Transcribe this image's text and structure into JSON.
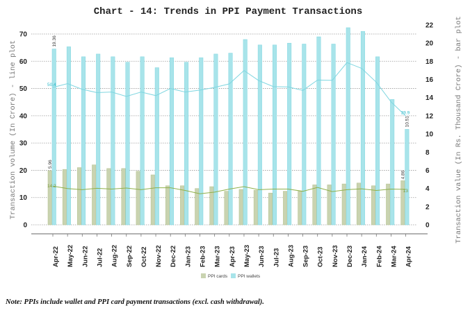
{
  "chart_data": {
    "type": "bar+line",
    "title": "Chart - 14: Trends in PPI Payment Transactions",
    "ylabel_left": "Transaction volume (In Crore) - line plot",
    "ylabel_right": "Transaction value (In Rs. Thousand Crore) - bar plot",
    "ylim_left": [
      0,
      70
    ],
    "yticks_left": [
      0,
      10,
      20,
      30,
      40,
      50,
      60,
      70
    ],
    "ylim_right": [
      0,
      22
    ],
    "yticks_right": [
      0,
      2,
      4,
      6,
      8,
      10,
      12,
      14,
      16,
      18,
      20,
      22
    ],
    "grid": true,
    "legend_position": "bottom",
    "categories": [
      "Apr-22",
      "May-22",
      "Jun-22",
      "Jul-22",
      "Aug-22",
      "Sep-22",
      "Oct-22",
      "Nov-22",
      "Dec-22",
      "Jan-23",
      "Feb-23",
      "Mar-23",
      "Apr-23",
      "May-23",
      "Jun-23",
      "Jul-23",
      "Aug-23",
      "Sep-23",
      "Oct-23",
      "Nov-23",
      "Dec-23",
      "Jan-24",
      "Feb-24",
      "Mar-24",
      "Apr-24"
    ],
    "bar_series": [
      {
        "name": "PPI cards",
        "color": "#c9d3b0",
        "axis": "right",
        "values": [
          5.96,
          6.1,
          6.3,
          6.6,
          6.2,
          6.2,
          5.9,
          5.5,
          4.3,
          4.3,
          4.0,
          4.2,
          3.7,
          3.9,
          3.8,
          3.5,
          3.7,
          3.7,
          4.4,
          4.4,
          4.5,
          4.6,
          4.3,
          4.5,
          4.86
        ]
      },
      {
        "name": "PPI wallets",
        "color": "#a8e4ea",
        "axis": "right",
        "values": [
          19.36,
          19.6,
          18.5,
          18.8,
          18.5,
          17.9,
          18.5,
          17.3,
          18.4,
          17.9,
          18.4,
          18.8,
          18.9,
          20.4,
          19.8,
          19.8,
          20.0,
          19.9,
          20.7,
          19.9,
          21.7,
          21.3,
          18.5,
          13.8,
          10.51
        ]
      }
    ],
    "line_series": [
      {
        "color": "#8fb04a",
        "axis": "left",
        "values": [
          14.2,
          13.3,
          12.9,
          13.4,
          13.1,
          13.5,
          12.9,
          13.6,
          13.6,
          12.6,
          11.4,
          12.0,
          13.1,
          14.0,
          12.9,
          13.1,
          13.1,
          12.3,
          13.7,
          12.2,
          12.9,
          13.2,
          12.6,
          13.1,
          13.0
        ]
      },
      {
        "color": "#7fd6e0",
        "axis": "left",
        "values": [
          50.4,
          51.8,
          49.7,
          48.5,
          48.7,
          47.1,
          48.7,
          47.4,
          50.0,
          48.7,
          49.4,
          50.4,
          51.7,
          56.6,
          52.9,
          50.7,
          50.6,
          49.3,
          53.1,
          53.0,
          59.5,
          57.4,
          52.3,
          45.1,
          39.9
        ]
      }
    ],
    "data_labels": {
      "wallet_bar_first": "19.36",
      "wallet_bar_last": "10.51",
      "card_bar_first": "5.96",
      "card_bar_last": "4.86",
      "wallet_line_first": "50.4",
      "wallet_line_last": "39.9",
      "card_line_first": "14.2",
      "card_line_last": "13"
    }
  },
  "note": "Note: PPIs include wallet and PPI card payment transactions (excl. cash withdrawal)."
}
